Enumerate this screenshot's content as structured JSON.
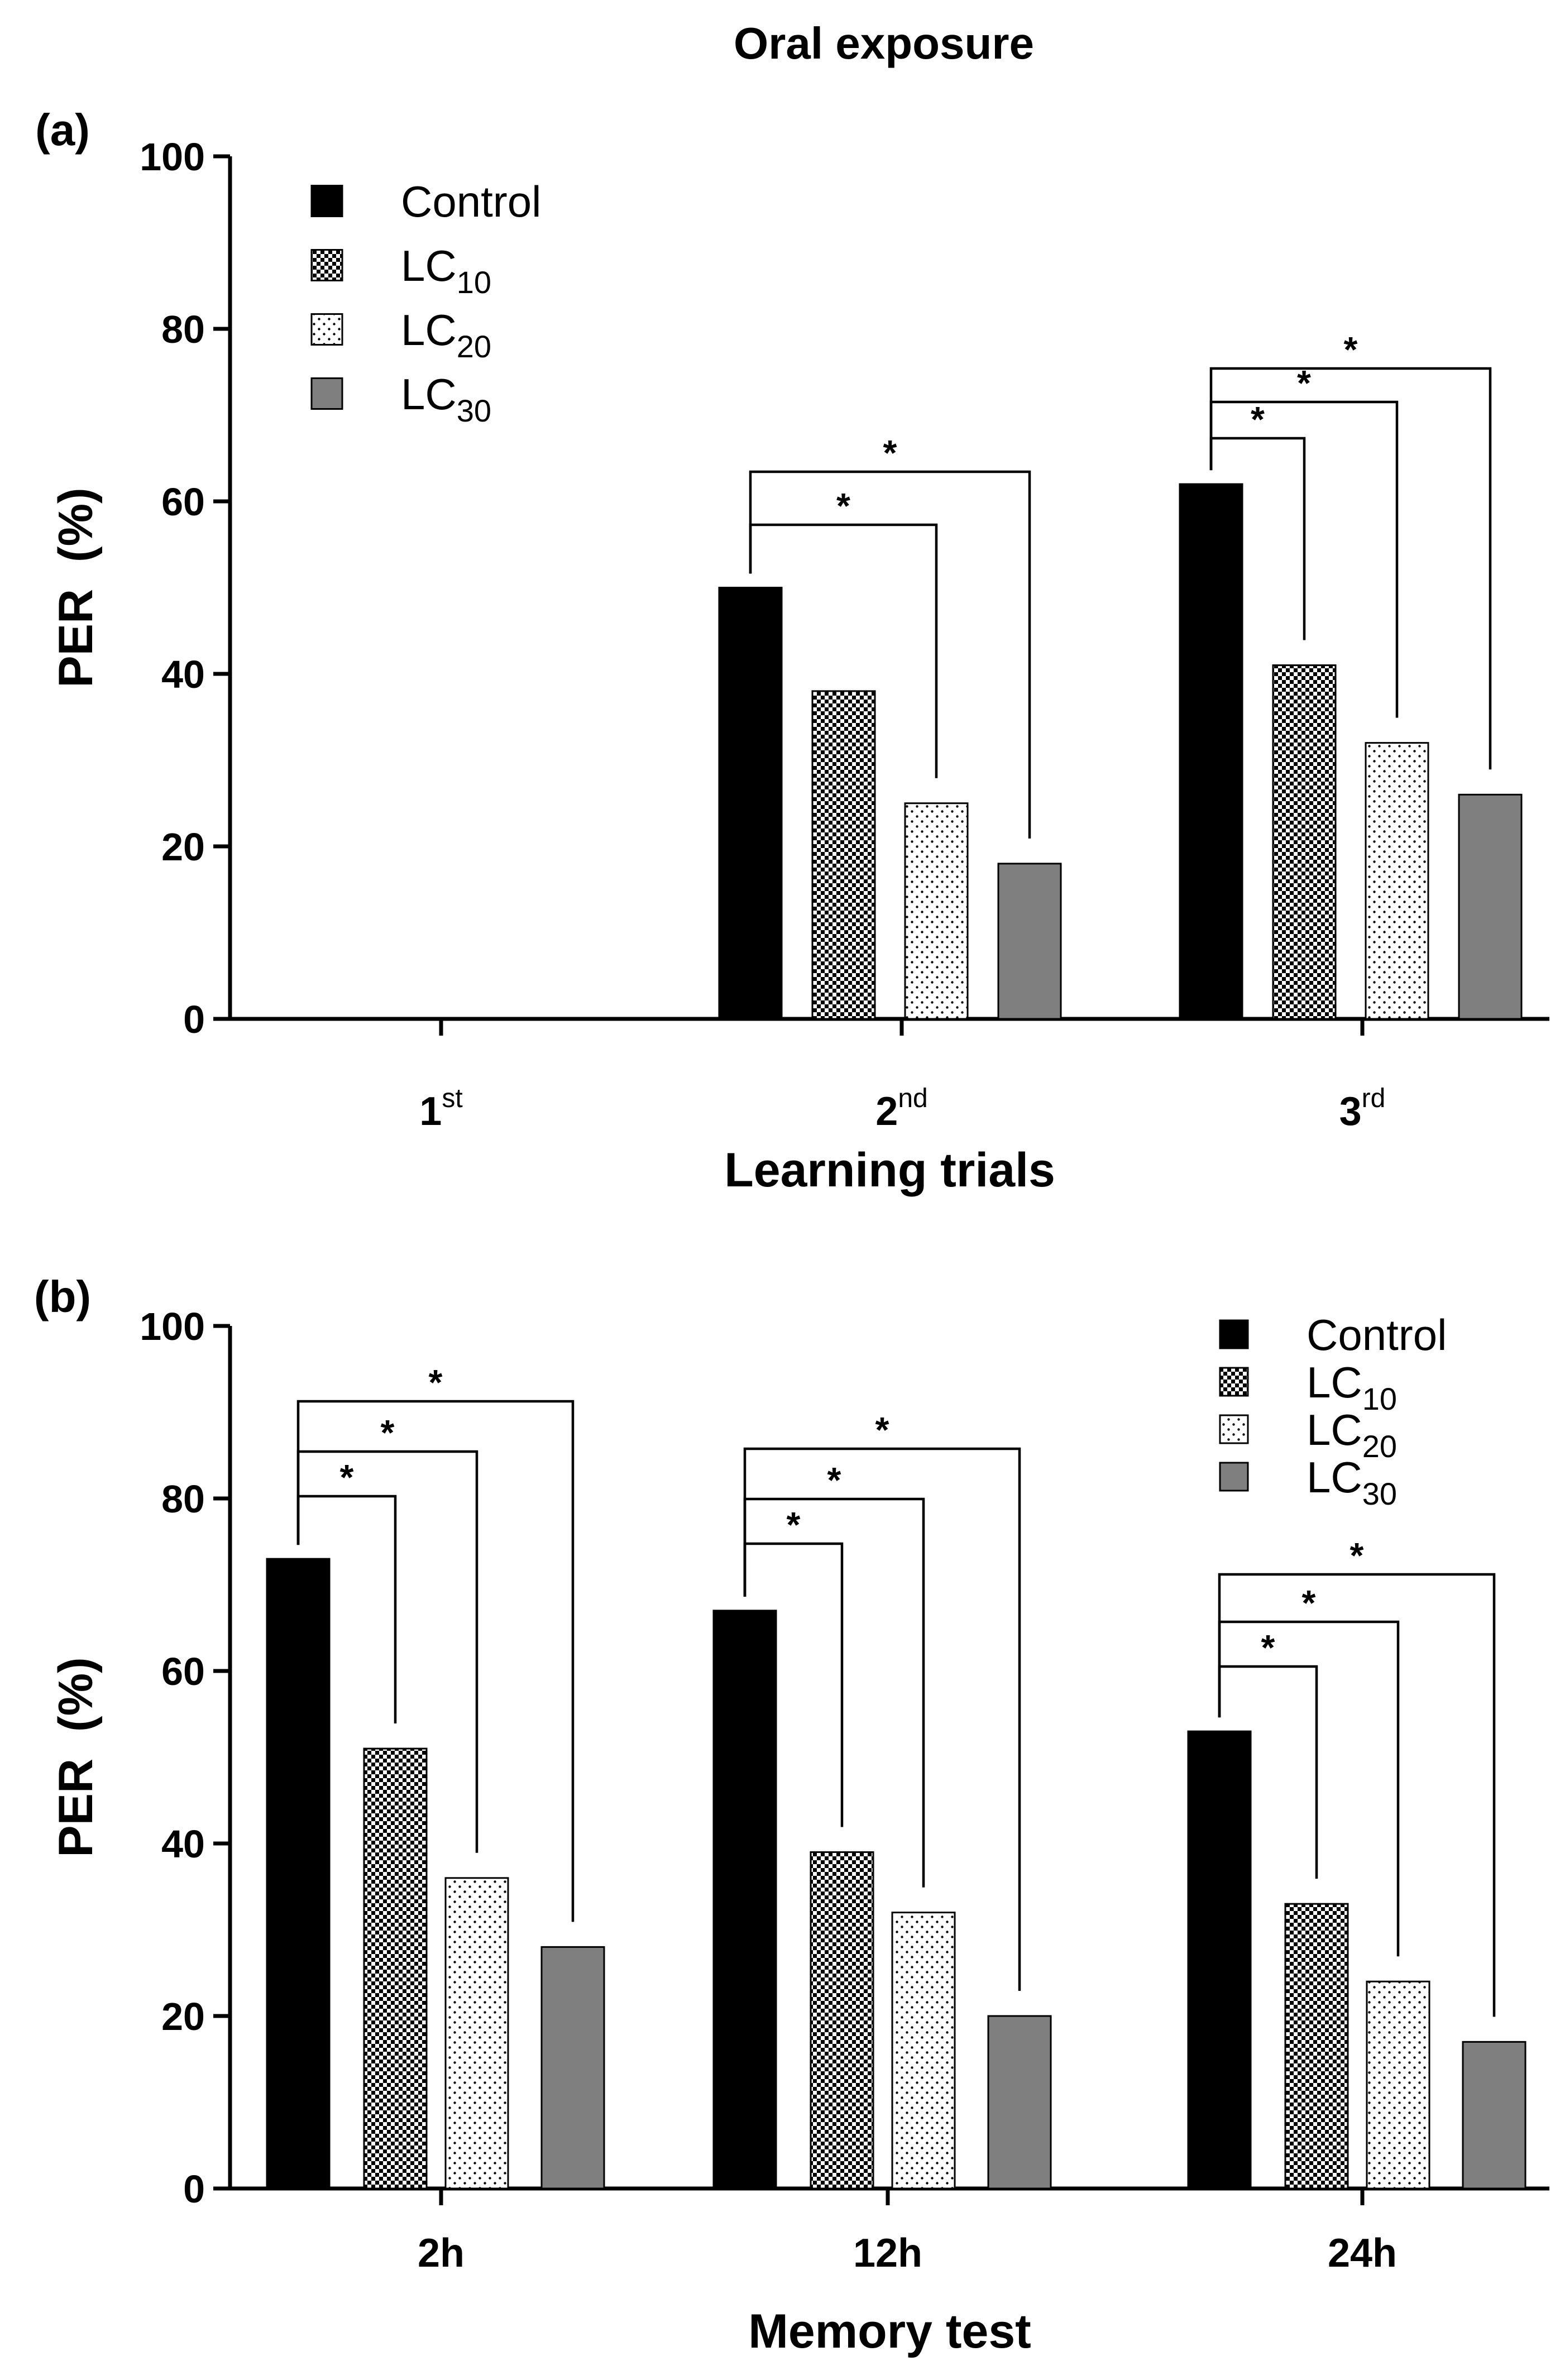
{
  "title": "Oral exposure",
  "chart_data": [
    {
      "panel": "(a)",
      "type": "bar",
      "xlabel": "Learning trials",
      "ylabel": "PER  (%)",
      "ylim": [
        0,
        100
      ],
      "yticks": [
        "0",
        "20",
        "40",
        "60",
        "80",
        "100"
      ],
      "categories": [
        {
          "base": "1",
          "sup": "st"
        },
        {
          "base": "2",
          "sup": "nd"
        },
        {
          "base": "3",
          "sup": "rd"
        }
      ],
      "legend_position": "top-left",
      "series": [
        {
          "name": "Control",
          "sub": "",
          "pattern": "solid-black",
          "values": [
            0,
            50,
            62
          ]
        },
        {
          "name": "LC",
          "sub": "10",
          "pattern": "checker",
          "values": [
            0,
            38,
            41
          ]
        },
        {
          "name": "LC",
          "sub": "20",
          "pattern": "dots",
          "values": [
            0,
            25,
            32
          ]
        },
        {
          "name": "LC",
          "sub": "30",
          "pattern": "solid-gray",
          "values": [
            0,
            18,
            26
          ]
        }
      ],
      "significance": [
        {
          "category": 1,
          "from": 0,
          "to": 2,
          "label": "*"
        },
        {
          "category": 1,
          "from": 0,
          "to": 3,
          "label": "*"
        },
        {
          "category": 2,
          "from": 0,
          "to": 1,
          "label": "*"
        },
        {
          "category": 2,
          "from": 0,
          "to": 2,
          "label": "*"
        },
        {
          "category": 2,
          "from": 0,
          "to": 3,
          "label": "*"
        }
      ]
    },
    {
      "panel": "(b)",
      "type": "bar",
      "xlabel": "Memory test",
      "ylabel": "PER  (%)",
      "ylim": [
        0,
        100
      ],
      "yticks": [
        "0",
        "20",
        "40",
        "60",
        "80",
        "100"
      ],
      "categories": [
        {
          "base": "2h",
          "sup": ""
        },
        {
          "base": "12h",
          "sup": ""
        },
        {
          "base": "24h",
          "sup": ""
        }
      ],
      "legend_position": "top-right",
      "series": [
        {
          "name": "Control",
          "sub": "",
          "pattern": "solid-black",
          "values": [
            73,
            67,
            53
          ]
        },
        {
          "name": "LC",
          "sub": "10",
          "pattern": "checker",
          "values": [
            51,
            39,
            33
          ]
        },
        {
          "name": "LC",
          "sub": "20",
          "pattern": "dots",
          "values": [
            36,
            32,
            24
          ]
        },
        {
          "name": "LC",
          "sub": "30",
          "pattern": "solid-gray",
          "values": [
            28,
            20,
            17
          ]
        }
      ],
      "significance": [
        {
          "category": 0,
          "from": 0,
          "to": 1,
          "label": "*"
        },
        {
          "category": 0,
          "from": 0,
          "to": 2,
          "label": "*"
        },
        {
          "category": 0,
          "from": 0,
          "to": 3,
          "label": "*"
        },
        {
          "category": 1,
          "from": 0,
          "to": 1,
          "label": "*"
        },
        {
          "category": 1,
          "from": 0,
          "to": 2,
          "label": "*"
        },
        {
          "category": 1,
          "from": 0,
          "to": 3,
          "label": "*"
        },
        {
          "category": 2,
          "from": 0,
          "to": 1,
          "label": "*"
        },
        {
          "category": 2,
          "from": 0,
          "to": 2,
          "label": "*"
        },
        {
          "category": 2,
          "from": 0,
          "to": 3,
          "label": "*"
        }
      ]
    }
  ]
}
